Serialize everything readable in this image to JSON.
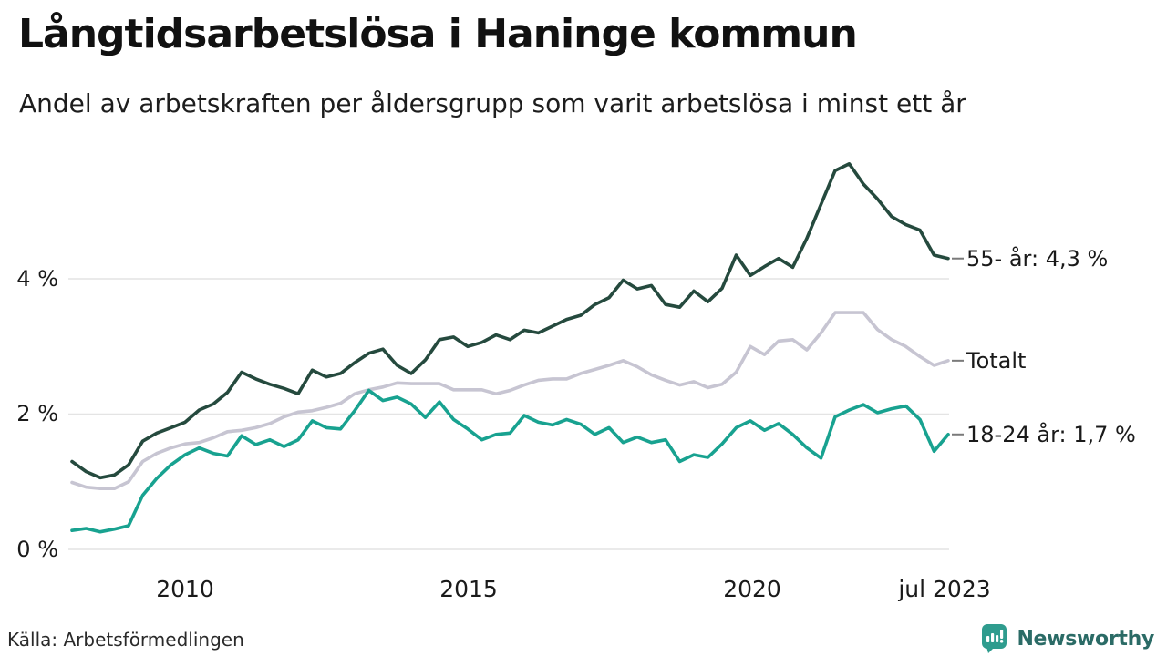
{
  "header": {
    "title": "Långtidsarbetslösa i Haninge kommun",
    "subtitle": "Andel av arbetskraften per åldersgrupp som varit arbetslösa i minst ett år"
  },
  "footer": {
    "source": "Källa: Arbetsförmedlingen",
    "logo_text": "Newsworthy",
    "logo_color": "#2f9c8e",
    "logo_text_color": "#2b6b66"
  },
  "chart_data": {
    "type": "line",
    "title": "Långtidsarbetslösa i Haninge kommun",
    "subtitle": "Andel av arbetskraften per åldersgrupp som varit arbetslösa i minst ett år",
    "grid": true,
    "grid_color": "#e4e4e4",
    "connector_color": "#7a7a7a",
    "legend_position": "right-end-labels",
    "x_axis": {
      "range": [
        2008.0,
        2023.58
      ],
      "ticks": [
        {
          "label": "2010",
          "year": 2010
        },
        {
          "label": "2015",
          "year": 2015
        },
        {
          "label": "2020",
          "year": 2020
        },
        {
          "label": "jul 2023",
          "year": 2023.5
        }
      ]
    },
    "y_axis": {
      "unit": "%",
      "range": [
        0,
        6.1
      ],
      "ticks": [
        {
          "label": "0 %",
          "value": 0
        },
        {
          "label": "2 %",
          "value": 2
        },
        {
          "label": "4 %",
          "value": 4
        }
      ]
    },
    "x": [
      2008.0,
      2008.25,
      2008.5,
      2008.75,
      2009.0,
      2009.25,
      2009.5,
      2009.75,
      2010.0,
      2010.25,
      2010.5,
      2010.75,
      2011.0,
      2011.25,
      2011.5,
      2011.75,
      2012.0,
      2012.25,
      2012.5,
      2012.75,
      2013.0,
      2013.25,
      2013.5,
      2013.75,
      2014.0,
      2014.25,
      2014.5,
      2014.75,
      2015.0,
      2015.25,
      2015.5,
      2015.75,
      2016.0,
      2016.25,
      2016.5,
      2016.75,
      2017.0,
      2017.25,
      2017.5,
      2017.75,
      2018.0,
      2018.25,
      2018.5,
      2018.75,
      2019.0,
      2019.25,
      2019.5,
      2019.75,
      2020.0,
      2020.25,
      2020.5,
      2020.75,
      2021.0,
      2021.25,
      2021.5,
      2021.75,
      2022.0,
      2022.25,
      2022.5,
      2022.75,
      2023.0,
      2023.25,
      2023.5
    ],
    "series": [
      {
        "name": "Totalt",
        "end_label": "Totalt",
        "color": "#c7c5d2",
        "values": [
          0.99,
          0.92,
          0.9,
          0.9,
          1.0,
          1.3,
          1.42,
          1.5,
          1.56,
          1.58,
          1.65,
          1.74,
          1.76,
          1.8,
          1.86,
          1.96,
          2.03,
          2.05,
          2.1,
          2.16,
          2.3,
          2.36,
          2.4,
          2.46,
          2.45,
          2.45,
          2.45,
          2.36,
          2.36,
          2.36,
          2.3,
          2.35,
          2.43,
          2.5,
          2.52,
          2.52,
          2.6,
          2.66,
          2.72,
          2.79,
          2.7,
          2.58,
          2.5,
          2.43,
          2.48,
          2.39,
          2.44,
          2.62,
          3.0,
          2.88,
          3.08,
          3.1,
          2.95,
          3.2,
          3.5,
          3.5,
          3.5,
          3.25,
          3.1,
          3.0,
          2.85,
          2.72,
          2.79
        ]
      },
      {
        "name": "18-24 år",
        "end_label": "18-24 år: 1,7 %",
        "last_value": 1.7,
        "color": "#18a290",
        "values": [
          0.28,
          0.31,
          0.26,
          0.3,
          0.35,
          0.8,
          1.05,
          1.25,
          1.4,
          1.5,
          1.42,
          1.38,
          1.68,
          1.55,
          1.62,
          1.52,
          1.62,
          1.9,
          1.8,
          1.78,
          2.05,
          2.35,
          2.2,
          2.25,
          2.15,
          1.95,
          2.18,
          1.92,
          1.78,
          1.62,
          1.7,
          1.72,
          1.98,
          1.88,
          1.84,
          1.92,
          1.85,
          1.7,
          1.8,
          1.58,
          1.66,
          1.58,
          1.62,
          1.3,
          1.4,
          1.36,
          1.56,
          1.8,
          1.9,
          1.76,
          1.86,
          1.7,
          1.5,
          1.35,
          1.96,
          2.06,
          2.14,
          2.02,
          2.08,
          2.12,
          1.92,
          1.45,
          1.7
        ]
      },
      {
        "name": "55- år",
        "end_label": "55- år: 4,3 %",
        "last_value": 4.3,
        "color": "#254a3e",
        "values": [
          1.3,
          1.15,
          1.06,
          1.1,
          1.25,
          1.6,
          1.72,
          1.8,
          1.88,
          2.06,
          2.15,
          2.32,
          2.62,
          2.52,
          2.44,
          2.38,
          2.3,
          2.65,
          2.55,
          2.6,
          2.76,
          2.9,
          2.96,
          2.72,
          2.6,
          2.8,
          3.1,
          3.14,
          3.0,
          3.06,
          3.17,
          3.1,
          3.24,
          3.2,
          3.3,
          3.4,
          3.46,
          3.62,
          3.72,
          3.98,
          3.85,
          3.9,
          3.62,
          3.58,
          3.82,
          3.66,
          3.86,
          4.35,
          4.05,
          4.18,
          4.3,
          4.17,
          4.6,
          5.1,
          5.6,
          5.7,
          5.4,
          5.18,
          4.92,
          4.8,
          4.72,
          4.35,
          4.3
        ]
      }
    ]
  }
}
